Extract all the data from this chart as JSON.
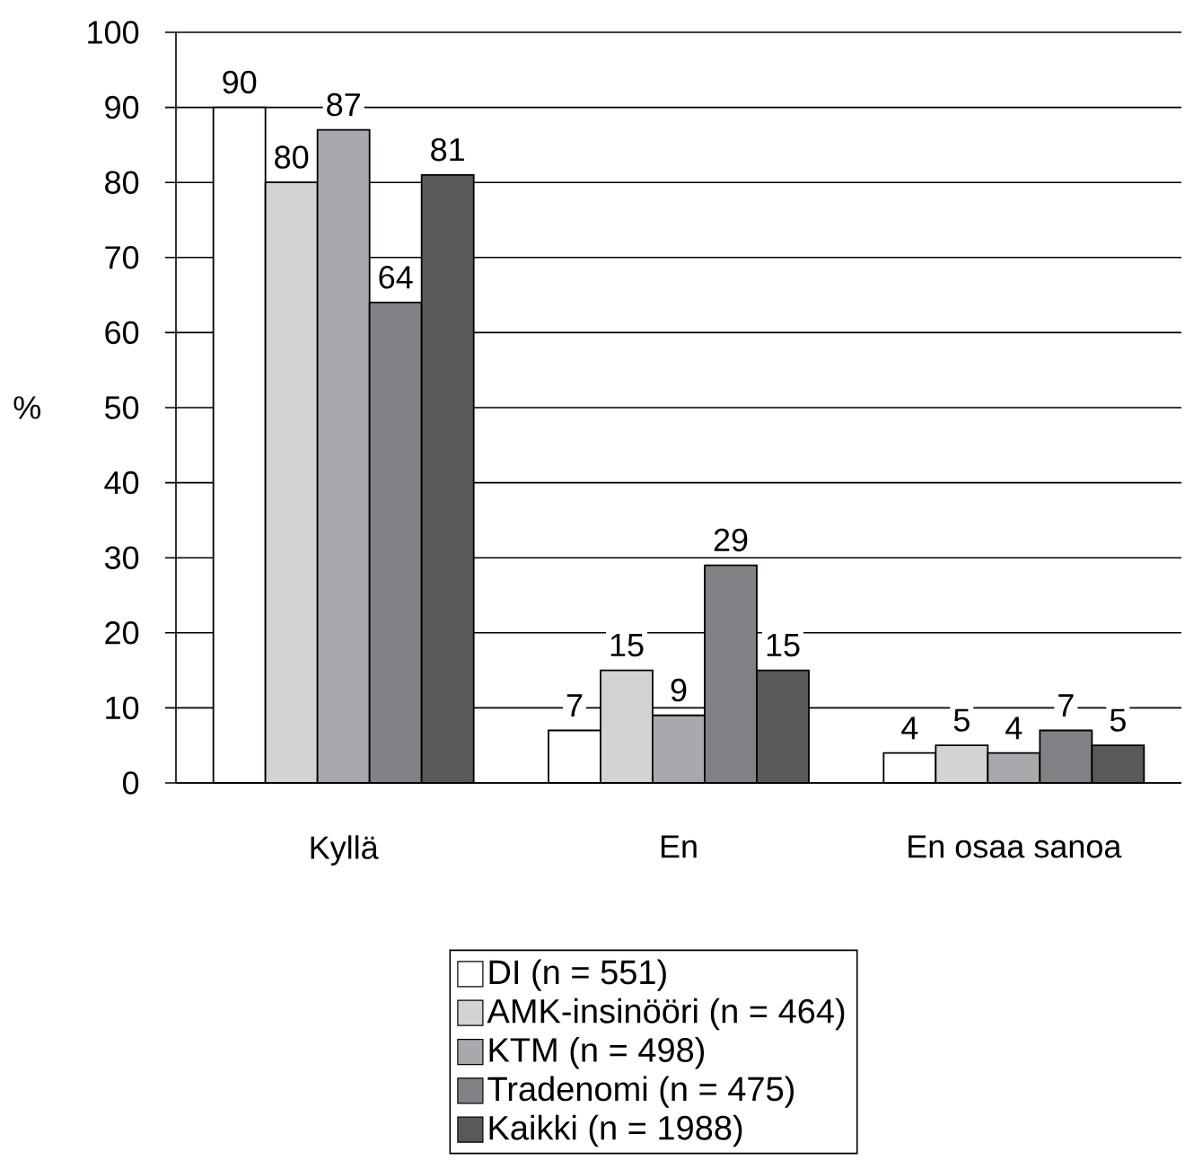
{
  "chart_data": {
    "type": "bar",
    "ylabel": "%",
    "categories": [
      "Kyllä",
      "En",
      "En osaa sanoa"
    ],
    "series": [
      {
        "name": "DI (n = 551)",
        "color": "#ffffff",
        "values": [
          90,
          7,
          4
        ]
      },
      {
        "name": "AMK-insinööri (n = 464)",
        "color": "#d1d3d4",
        "values": [
          80,
          15,
          5
        ]
      },
      {
        "name": "KTM (n = 498)",
        "color": "#a7a9ac",
        "values": [
          87,
          9,
          4
        ]
      },
      {
        "name": "Tradenomi (n = 475)",
        "color": "#808285",
        "values": [
          64,
          29,
          7
        ]
      },
      {
        "name": "Kaikki (n = 1988)",
        "color": "#58595b",
        "values": [
          81,
          15,
          5
        ]
      }
    ],
    "ylim": [
      0,
      100
    ],
    "yticks": [
      0,
      10,
      20,
      30,
      40,
      50,
      60,
      70,
      80,
      90,
      100
    ],
    "grid": "y",
    "legend": "bottom",
    "data_labels": true
  }
}
